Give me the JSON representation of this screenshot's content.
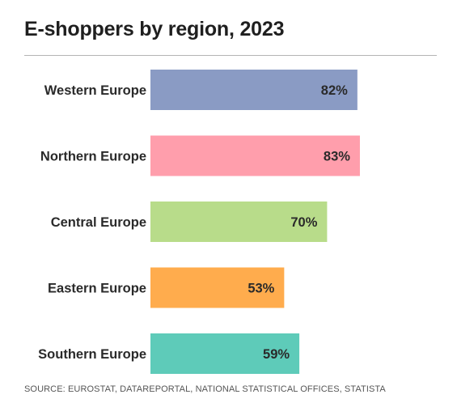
{
  "title": "E-shoppers by region, 2023",
  "source": "SOURCE: EUROSTAT, DATAREPORTAL, NATIONAL STATISTICAL OFFICES, STATISTA",
  "chart_data": {
    "type": "bar",
    "orientation": "horizontal",
    "title": "E-shoppers by region, 2023",
    "xlabel": "",
    "ylabel": "",
    "xlim": [
      0,
      100
    ],
    "grid": false,
    "categories": [
      "Western Europe",
      "Northern Europe",
      "Central Europe",
      "Eastern Europe",
      "Southern Europe"
    ],
    "values": [
      82,
      83,
      70,
      53,
      59
    ],
    "labels": [
      "82%",
      "83%",
      "70%",
      "53%",
      "59%"
    ],
    "colors": [
      "#8a9bc4",
      "#ff9eac",
      "#b8dc8a",
      "#ffac4d",
      "#5ecbb9"
    ]
  }
}
